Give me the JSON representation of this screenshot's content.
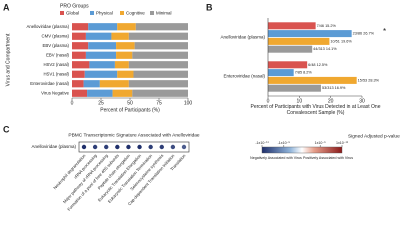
{
  "chart_data": [
    {
      "type": "stacked-barh",
      "panel": "A",
      "legend_title": "PRO Groups",
      "categories": [
        "Anelloviridae (plasma)",
        "CMV (plasma)",
        "EBV (plasma)",
        "EBV (nasal)",
        "HSV2 (nasal)",
        "HSV1 (nasal)",
        "Enterovirdae (nasal)",
        "Virus Negative"
      ],
      "series": [
        {
          "name": "Global",
          "color": "#d9534f",
          "values": [
            14,
            12,
            14,
            12,
            15,
            11,
            10,
            13
          ]
        },
        {
          "name": "Physical",
          "color": "#5b9bd5",
          "values": [
            25,
            22,
            24,
            26,
            22,
            28,
            14,
            22
          ]
        },
        {
          "name": "Cognitive",
          "color": "#f0a830",
          "values": [
            16,
            15,
            16,
            14,
            12,
            14,
            25,
            17
          ]
        },
        {
          "name": "Minimal",
          "color": "#9a9a9a",
          "values": [
            45,
            51,
            46,
            48,
            51,
            47,
            51,
            48
          ]
        }
      ],
      "xlim": [
        0,
        100
      ],
      "xticks": [
        0,
        25,
        50,
        75,
        100
      ],
      "xlabel": "Percent of Participants (%)",
      "ylabel": "Virus and Compartment",
      "legend": "top"
    },
    {
      "type": "grouped-barh",
      "panel": "B",
      "categories": [
        "Anelloviridae (plasma)",
        "Enteroviridae (nasal)"
      ],
      "series": [
        {
          "name": "Global",
          "color": "#d9534f",
          "values": [
            15.2,
            12.5
          ],
          "value_labels": [
            "7/46 15.2%",
            "6/48 12.5%"
          ]
        },
        {
          "name": "Physical",
          "color": "#5b9bd5",
          "values": [
            26.7,
            8.2
          ],
          "value_labels": [
            "23/86 26.7%",
            "7/85 8.2%"
          ]
        },
        {
          "name": "Cognitive",
          "color": "#f0a830",
          "values": [
            19.6,
            28.3
          ],
          "value_labels": [
            "10/51 19.6%",
            "15/53 28.3%"
          ]
        },
        {
          "name": "Minimal",
          "color": "#9a9a9a",
          "values": [
            14.1,
            16.9
          ],
          "value_labels": [
            "44/313 14.1%",
            "53/313 16.9%"
          ]
        }
      ],
      "annotations": [
        "*"
      ],
      "xlim": [
        0,
        30
      ],
      "xticks": [
        0,
        10,
        20,
        30
      ],
      "xlabel": "Percent of Participants with Virus Detected in at Least One Convalescent Sample (%)"
    },
    {
      "type": "dot-heatmap",
      "panel": "C",
      "title": "PBMC Transcriptomic Signature Associated with Anelloviridae",
      "row": "Anelloviridae (plasma)",
      "categories": [
        "Neutrophil degranulation",
        "rRNA processing",
        "Major pathway of rRNA processing",
        "Formation of a pool of free 40S subunits",
        "Peptide chain elongation",
        "Eukaryotic Translation Elongation",
        "Eukaryotic Translation Termination",
        "Selenocysteine synthesis",
        "Cap-dependent Translation Initiation",
        "Translation"
      ],
      "values": [
        -1e-11,
        -1e-10,
        -1e-10,
        -1e-11,
        -1e-11,
        -1e-11,
        -1e-10,
        -1e-10,
        -1e-09,
        -1e-08
      ],
      "colorbar_title": "Signed Adjusted p-value",
      "clim": [
        -1e-11,
        1e-11
      ],
      "cticks": [
        {
          "value": -1e-11,
          "label": "-1x10⁻¹¹"
        },
        {
          "value": -1e-05,
          "label": "-1x10⁻⁵"
        },
        {
          "value": 1e-05,
          "label": "1x10⁻⁵"
        },
        {
          "value": 1e-11,
          "label": "1x10⁻¹¹"
        }
      ],
      "low_label": "Negatively Associated with Virus",
      "high_label": "Positively Associated with Virus"
    }
  ]
}
